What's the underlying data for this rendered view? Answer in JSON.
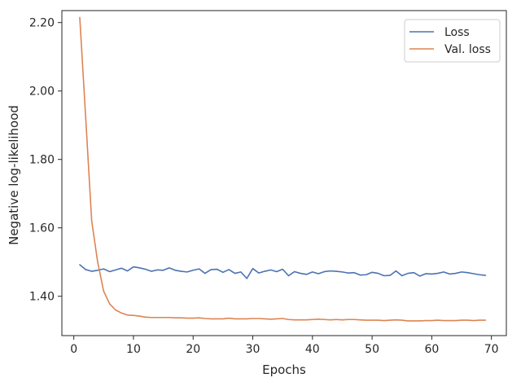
{
  "chart_data": {
    "type": "line",
    "title": "",
    "xlabel": "Epochs",
    "ylabel": "Negative log-likelihood",
    "xlim": [
      -2,
      72.5
    ],
    "ylim": [
      1.285,
      2.235
    ],
    "xticks": [
      0,
      10,
      20,
      30,
      40,
      50,
      60,
      70
    ],
    "xtick_labels": [
      "0",
      "10",
      "20",
      "30",
      "40",
      "50",
      "60",
      "70"
    ],
    "yticks": [
      1.4,
      1.6,
      1.8,
      2.0,
      2.2
    ],
    "ytick_labels": [
      "1.40",
      "1.60",
      "1.80",
      "2.00",
      "2.20"
    ],
    "grid": false,
    "legend_position": "top-right",
    "x": [
      1,
      2,
      3,
      4,
      5,
      6,
      7,
      8,
      9,
      10,
      11,
      12,
      13,
      14,
      15,
      16,
      17,
      18,
      19,
      20,
      21,
      22,
      23,
      24,
      25,
      26,
      27,
      28,
      29,
      30,
      31,
      32,
      33,
      34,
      35,
      36,
      37,
      38,
      39,
      40,
      41,
      42,
      43,
      44,
      45,
      46,
      47,
      48,
      49,
      50,
      51,
      52,
      53,
      54,
      55,
      56,
      57,
      58,
      59,
      60,
      61,
      62,
      63,
      64,
      65,
      66,
      67,
      68,
      69
    ],
    "series": [
      {
        "name": "Loss",
        "color": "#4c72b0",
        "values": [
          1.492,
          1.478,
          1.473,
          1.476,
          1.48,
          1.472,
          1.477,
          1.482,
          1.474,
          1.486,
          1.483,
          1.479,
          1.473,
          1.477,
          1.476,
          1.483,
          1.476,
          1.473,
          1.471,
          1.476,
          1.48,
          1.467,
          1.478,
          1.479,
          1.47,
          1.478,
          1.467,
          1.471,
          1.452,
          1.481,
          1.468,
          1.473,
          1.477,
          1.472,
          1.479,
          1.46,
          1.472,
          1.467,
          1.464,
          1.471,
          1.466,
          1.472,
          1.474,
          1.473,
          1.471,
          1.468,
          1.469,
          1.462,
          1.463,
          1.47,
          1.467,
          1.46,
          1.461,
          1.474,
          1.46,
          1.467,
          1.469,
          1.459,
          1.466,
          1.465,
          1.467,
          1.471,
          1.465,
          1.467,
          1.471,
          1.469,
          1.466,
          1.463,
          1.461
        ]
      },
      {
        "name": "Val. loss",
        "color": "#dd8452",
        "values": [
          2.215,
          1.92,
          1.62,
          1.5,
          1.415,
          1.378,
          1.36,
          1.351,
          1.345,
          1.344,
          1.342,
          1.339,
          1.338,
          1.338,
          1.338,
          1.338,
          1.337,
          1.337,
          1.336,
          1.336,
          1.337,
          1.335,
          1.334,
          1.334,
          1.334,
          1.336,
          1.334,
          1.334,
          1.334,
          1.335,
          1.335,
          1.334,
          1.333,
          1.334,
          1.335,
          1.332,
          1.331,
          1.331,
          1.331,
          1.332,
          1.333,
          1.332,
          1.331,
          1.332,
          1.331,
          1.332,
          1.332,
          1.331,
          1.33,
          1.33,
          1.33,
          1.329,
          1.33,
          1.331,
          1.33,
          1.328,
          1.328,
          1.328,
          1.329,
          1.329,
          1.33,
          1.329,
          1.329,
          1.329,
          1.33,
          1.33,
          1.329,
          1.33,
          1.33
        ]
      }
    ]
  }
}
